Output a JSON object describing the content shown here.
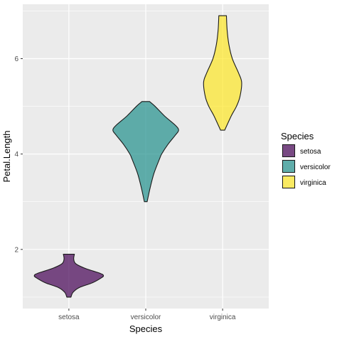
{
  "chart_data": {
    "type": "violin",
    "title": "",
    "xlabel": "Species",
    "ylabel": "Petal.Length",
    "categories": [
      "setosa",
      "versicolor",
      "virginica"
    ],
    "ylim": [
      0.76,
      7.14
    ],
    "yticks": [
      2,
      4,
      6
    ],
    "grid": true,
    "legend": {
      "title": "Species",
      "position": "right",
      "items": [
        "setosa",
        "versicolor",
        "virginica"
      ]
    },
    "series": [
      {
        "category": "setosa",
        "color": "#440154",
        "profile": [
          [
            1.0,
            0.06
          ],
          [
            1.1,
            0.12
          ],
          [
            1.2,
            0.3
          ],
          [
            1.3,
            0.68
          ],
          [
            1.4,
            0.93
          ],
          [
            1.45,
            1.0
          ],
          [
            1.5,
            0.9
          ],
          [
            1.6,
            0.48
          ],
          [
            1.7,
            0.2
          ],
          [
            1.8,
            0.14
          ],
          [
            1.9,
            0.16
          ]
        ]
      },
      {
        "category": "versicolor",
        "color": "#21908C",
        "profile": [
          [
            3.0,
            0.04
          ],
          [
            3.3,
            0.13
          ],
          [
            3.6,
            0.24
          ],
          [
            3.9,
            0.4
          ],
          [
            4.0,
            0.46
          ],
          [
            4.2,
            0.64
          ],
          [
            4.4,
            0.86
          ],
          [
            4.5,
            0.95
          ],
          [
            4.6,
            0.86
          ],
          [
            4.8,
            0.54
          ],
          [
            5.0,
            0.27
          ],
          [
            5.1,
            0.11
          ]
        ]
      },
      {
        "category": "virginica",
        "color": "#FDE725",
        "profile": [
          [
            4.5,
            0.06
          ],
          [
            4.8,
            0.25
          ],
          [
            5.0,
            0.4
          ],
          [
            5.2,
            0.5
          ],
          [
            5.5,
            0.55
          ],
          [
            5.7,
            0.46
          ],
          [
            6.0,
            0.28
          ],
          [
            6.3,
            0.18
          ],
          [
            6.6,
            0.13
          ],
          [
            6.9,
            0.11
          ]
        ]
      }
    ]
  }
}
